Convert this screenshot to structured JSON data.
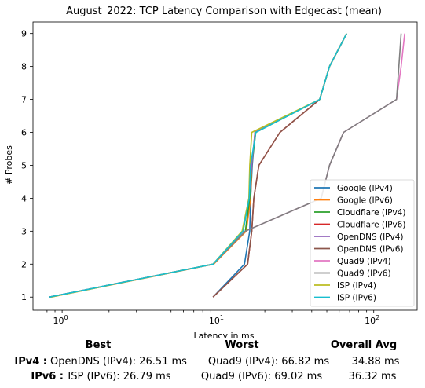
{
  "chart_data": {
    "type": "line",
    "title": "August_2022: TCP Latency Comparison with Edgecast (mean)",
    "xlabel": "Latency in ms",
    "ylabel": "# Probes",
    "xscale": "log",
    "xlim": [
      0.65,
      190
    ],
    "ylim": [
      0.6,
      9.35
    ],
    "yticks": [
      1,
      2,
      3,
      4,
      5,
      6,
      7,
      8,
      9
    ],
    "xticks": [
      {
        "value": 1,
        "base": "10",
        "exp": "0"
      },
      {
        "value": 10,
        "base": "10",
        "exp": "1"
      },
      {
        "value": 100,
        "base": "10",
        "exp": "2"
      }
    ],
    "grid": false,
    "legend_position": "lower right",
    "series": [
      {
        "name": "Google (IPv4)",
        "color": "#1f77b4",
        "x": [
          9.3,
          14.8,
          16.0,
          16.2,
          16.6,
          17.3,
          45,
          52,
          67
        ],
        "y": [
          1,
          2,
          3,
          4,
          5,
          6,
          7,
          8,
          9
        ]
      },
      {
        "name": "Google (IPv6)",
        "color": "#ff7f0e",
        "x": [
          0.85,
          9.4,
          15.2,
          16.2,
          16.5,
          17.3,
          45,
          52,
          67
        ],
        "y": [
          1,
          2,
          3,
          4,
          5,
          6,
          7,
          8,
          9
        ]
      },
      {
        "name": "Cloudflare (IPv4)",
        "color": "#2ca02c",
        "x": [
          0.83,
          9.3,
          15.0,
          16.0,
          16.5,
          17.5,
          45,
          52,
          67
        ],
        "y": [
          1,
          2,
          3,
          4,
          5,
          6,
          7,
          8,
          9
        ]
      },
      {
        "name": "Cloudflare (IPv6)",
        "color": "#d62728",
        "x": [
          9.3,
          15.5,
          16.5,
          17.0,
          18.3,
          25.0,
          45,
          52,
          67
        ],
        "y": [
          1,
          2,
          3,
          4,
          5,
          6,
          7,
          8,
          9
        ]
      },
      {
        "name": "OpenDNS (IPv4)",
        "color": "#9467bd",
        "x": [
          0.83,
          9.3,
          14.5,
          15.8,
          16.5,
          17.3,
          45,
          52,
          67
        ],
        "y": [
          1,
          2,
          3,
          4,
          5,
          6,
          7,
          8,
          9
        ]
      },
      {
        "name": "OpenDNS (IPv6)",
        "color": "#8c564b",
        "x": [
          9.3,
          15.5,
          16.5,
          17.0,
          18.3,
          25.0,
          45,
          52,
          67
        ],
        "y": [
          1,
          2,
          3,
          4,
          5,
          6,
          7,
          8,
          9
        ]
      },
      {
        "name": "Quad9 (IPv4)",
        "color": "#e377c2",
        "x": [
          0.83,
          9.3,
          15.0,
          46,
          52,
          64,
          140,
          150,
          158
        ],
        "y": [
          1,
          2,
          3,
          4,
          5,
          6,
          7,
          8,
          9
        ]
      },
      {
        "name": "Quad9 (IPv6)",
        "color": "#7f7f7f",
        "x": [
          0.83,
          9.3,
          15.0,
          46,
          52,
          64,
          140,
          145,
          150
        ],
        "y": [
          1,
          2,
          3,
          4,
          5,
          6,
          7,
          8,
          9
        ]
      },
      {
        "name": "ISP (IPv4)",
        "color": "#bcbd22",
        "x": [
          0.85,
          9.3,
          14.3,
          15.8,
          16.0,
          16.5,
          45,
          52,
          67
        ],
        "y": [
          1,
          2,
          3,
          4,
          5,
          6,
          7,
          8,
          9
        ]
      },
      {
        "name": "ISP (IPv6)",
        "color": "#17becf",
        "x": [
          0.83,
          9.3,
          14.5,
          15.9,
          16.2,
          17.5,
          45,
          52,
          67
        ],
        "y": [
          1,
          2,
          3,
          4,
          5,
          6,
          7,
          8,
          9
        ]
      }
    ]
  },
  "summary": {
    "headers": {
      "best": "Best",
      "worst": "Worst",
      "avg": "Overall Avg"
    },
    "rows": [
      {
        "label": "IPv4 :",
        "best": "OpenDNS (IPv4): 26.51 ms",
        "worst": "Quad9 (IPv4): 66.82 ms",
        "avg": "34.88 ms"
      },
      {
        "label": "IPv6 :",
        "best": "ISP (IPv6): 26.79 ms",
        "worst": "Quad9 (IPv6): 69.02 ms",
        "avg": "36.32 ms"
      }
    ]
  }
}
